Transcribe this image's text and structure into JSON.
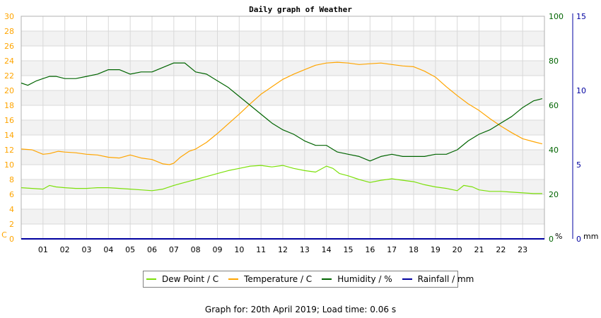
{
  "chart_data": {
    "type": "line",
    "title": "Daily graph of Weather",
    "x_ticks": [
      "01",
      "02",
      "03",
      "04",
      "05",
      "06",
      "07",
      "08",
      "09",
      "10",
      "11",
      "12",
      "13",
      "14",
      "15",
      "16",
      "17",
      "18",
      "19",
      "20",
      "21",
      "22",
      "23"
    ],
    "xlim": [
      0,
      24
    ],
    "axes": {
      "left": {
        "unit": "C",
        "ticks": [
          "0",
          "2",
          "4",
          "6",
          "8",
          "10",
          "12",
          "14",
          "16",
          "18",
          "20",
          "22",
          "24",
          "26",
          "28",
          "30"
        ],
        "ylim": [
          0,
          30
        ],
        "color": "#ffa500"
      },
      "right1": {
        "unit": "%",
        "ticks": [
          "0",
          "20",
          "40",
          "60",
          "80",
          "100"
        ],
        "ylim": [
          0,
          100
        ],
        "color": "#006400"
      },
      "right2": {
        "unit": "mm",
        "ticks": [
          "0",
          "5",
          "10",
          "15"
        ],
        "ylim": [
          0,
          15
        ],
        "color": "#0000a0"
      }
    },
    "grid": true,
    "legend_position": "bottom",
    "series": [
      {
        "name": "Dew Point / C",
        "axis": "left",
        "color": "#7ce00a",
        "x": [
          0,
          0.5,
          1,
          1.3,
          1.6,
          2,
          2.5,
          3,
          3.5,
          4,
          4.5,
          5,
          5.5,
          6,
          6.5,
          7,
          7.5,
          8,
          8.5,
          9,
          9.5,
          10,
          10.5,
          11,
          11.5,
          12,
          12.5,
          13,
          13.5,
          14,
          14.3,
          14.6,
          15,
          15.5,
          16,
          16.5,
          17,
          17.5,
          18,
          18.5,
          19,
          19.5,
          20,
          20.3,
          20.7,
          21,
          21.5,
          22,
          22.5,
          23,
          23.5,
          23.9
        ],
        "y": [
          6.9,
          6.8,
          6.7,
          7.2,
          7.0,
          6.9,
          6.8,
          6.8,
          6.9,
          6.9,
          6.8,
          6.7,
          6.6,
          6.5,
          6.7,
          7.2,
          7.6,
          8.0,
          8.4,
          8.8,
          9.2,
          9.5,
          9.8,
          9.9,
          9.7,
          9.9,
          9.5,
          9.2,
          9.0,
          9.8,
          9.5,
          8.8,
          8.5,
          8.0,
          7.6,
          7.9,
          8.1,
          7.9,
          7.7,
          7.3,
          7.0,
          6.8,
          6.5,
          7.2,
          7.0,
          6.6,
          6.4,
          6.4,
          6.3,
          6.2,
          6.1,
          6.1
        ]
      },
      {
        "name": "Temperature / C",
        "axis": "left",
        "color": "#ffa500",
        "x": [
          0,
          0.5,
          1,
          1.3,
          1.7,
          2,
          2.5,
          3,
          3.5,
          4,
          4.5,
          5,
          5.5,
          6,
          6.5,
          6.8,
          7,
          7.3,
          7.7,
          8,
          8.5,
          9,
          9.5,
          10,
          10.5,
          11,
          11.5,
          12,
          12.5,
          13,
          13.5,
          14,
          14.5,
          15,
          15.5,
          16,
          16.5,
          17,
          17.5,
          18,
          18.5,
          19,
          19.5,
          20,
          20.5,
          21,
          21.5,
          22,
          22.5,
          23,
          23.5,
          23.9
        ],
        "y": [
          12.1,
          12.0,
          11.4,
          11.5,
          11.8,
          11.7,
          11.6,
          11.4,
          11.3,
          11.0,
          10.9,
          11.3,
          10.9,
          10.7,
          10.1,
          10.0,
          10.2,
          11.0,
          11.8,
          12.1,
          13.0,
          14.2,
          15.5,
          16.8,
          18.2,
          19.5,
          20.5,
          21.5,
          22.2,
          22.8,
          23.4,
          23.7,
          23.8,
          23.7,
          23.5,
          23.6,
          23.7,
          23.5,
          23.3,
          23.2,
          22.6,
          21.8,
          20.5,
          19.3,
          18.2,
          17.3,
          16.2,
          15.2,
          14.3,
          13.5,
          13.1,
          12.8
        ]
      },
      {
        "name": "Humidity / %",
        "axis": "right1",
        "color": "#006400",
        "x": [
          0,
          0.3,
          0.7,
          1,
          1.3,
          1.6,
          2,
          2.5,
          3,
          3.5,
          4,
          4.5,
          5,
          5.5,
          6,
          6.5,
          7,
          7.5,
          8,
          8.5,
          9,
          9.5,
          10,
          10.5,
          11,
          11.5,
          12,
          12.5,
          13,
          13.5,
          14,
          14.5,
          15,
          15.5,
          16,
          16.5,
          17,
          17.5,
          18,
          18.5,
          19,
          19.5,
          20,
          20.5,
          21,
          21.5,
          22,
          22.5,
          23,
          23.5,
          23.9
        ],
        "y": [
          70,
          69,
          71,
          72,
          73,
          73,
          72,
          72,
          73,
          74,
          76,
          76,
          74,
          75,
          75,
          77,
          79,
          79,
          75,
          74,
          71,
          68,
          64,
          60,
          56,
          52,
          49,
          47,
          44,
          42,
          42,
          39,
          38,
          37,
          35,
          37,
          38,
          37,
          37,
          37,
          38,
          38,
          40,
          44,
          47,
          49,
          52,
          55,
          59,
          62,
          63
        ]
      },
      {
        "name": "Rainfall / mm",
        "axis": "right2",
        "color": "#0000a0",
        "x": [
          0,
          24
        ],
        "y": [
          0,
          0
        ]
      }
    ]
  },
  "legend": {
    "items": [
      {
        "label": "Dew Point / C",
        "color": "#7ce00a"
      },
      {
        "label": "Temperature / C",
        "color": "#ffa500"
      },
      {
        "label": "Humidity / %",
        "color": "#006400"
      },
      {
        "label": "Rainfall / mm",
        "color": "#0000a0"
      }
    ]
  },
  "footer": {
    "text": "Graph for: 20th April 2019; Load time: 0.06 s"
  }
}
